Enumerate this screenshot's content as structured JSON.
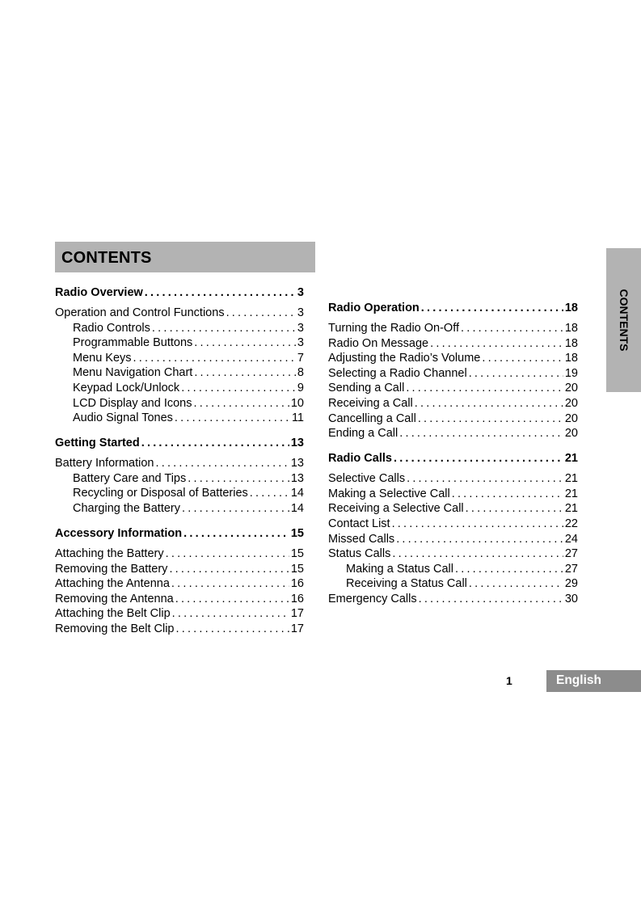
{
  "title": "CONTENTS",
  "side_tab": "CONTENTS",
  "footer": {
    "page_number": "1",
    "language": "English"
  },
  "colors": {
    "header_bar": "#b3b3b3",
    "side_tab": "#b3b3b3",
    "language_box": "#8c8c8c"
  },
  "left_column": [
    {
      "heading": {
        "label": "Radio Overview",
        "page": "3"
      },
      "items": [
        {
          "label": "Operation and Control Functions",
          "page": "3",
          "indent": 0
        },
        {
          "label": "Radio Controls",
          "page": "3",
          "indent": 1
        },
        {
          "label": "Programmable Buttons",
          "page": "3",
          "indent": 1
        },
        {
          "label": "Menu Keys",
          "page": "7",
          "indent": 1
        },
        {
          "label": "Menu Navigation Chart",
          "page": "8",
          "indent": 1
        },
        {
          "label": "Keypad Lock/Unlock",
          "page": "9",
          "indent": 1
        },
        {
          "label": "LCD Display and Icons",
          "page": "10",
          "indent": 1
        },
        {
          "label": "Audio Signal Tones",
          "page": "11",
          "indent": 1
        }
      ]
    },
    {
      "heading": {
        "label": "Getting Started",
        "page": "13"
      },
      "items": [
        {
          "label": "Battery Information",
          "page": "13",
          "indent": 0
        },
        {
          "label": "Battery Care and Tips",
          "page": "13",
          "indent": 1
        },
        {
          "label": "Recycling or Disposal of Batteries",
          "page": "14",
          "indent": 1
        },
        {
          "label": "Charging the Battery",
          "page": "14",
          "indent": 1
        }
      ]
    },
    {
      "heading": {
        "label": "Accessory Information",
        "page": "15"
      },
      "items": [
        {
          "label": "Attaching the Battery",
          "page": "15",
          "indent": 0
        },
        {
          "label": "Removing the Battery",
          "page": "15",
          "indent": 0
        },
        {
          "label": "Attaching the Antenna",
          "page": "16",
          "indent": 0
        },
        {
          "label": "Removing the  Antenna",
          "page": "16",
          "indent": 0
        },
        {
          "label": "Attaching the Belt Clip",
          "page": "17",
          "indent": 0
        },
        {
          "label": "Removing the Belt Clip",
          "page": "17",
          "indent": 0
        }
      ]
    }
  ],
  "right_column": [
    {
      "heading": {
        "label": "Radio Operation",
        "page": "18"
      },
      "items": [
        {
          "label": "Turning the Radio On-Off",
          "page": "18",
          "indent": 0
        },
        {
          "label": "Radio On Message",
          "page": "18",
          "indent": 0
        },
        {
          "label": "Adjusting the Radio’s Volume",
          "page": "18",
          "indent": 0
        },
        {
          "label": "Selecting a Radio Channel",
          "page": "19",
          "indent": 0
        },
        {
          "label": "Sending a Call",
          "page": "20",
          "indent": 0
        },
        {
          "label": "Receiving a Call",
          "page": "20",
          "indent": 0
        },
        {
          "label": "Cancelling a Call",
          "page": "20",
          "indent": 0
        },
        {
          "label": "Ending a Call",
          "page": "20",
          "indent": 0
        }
      ]
    },
    {
      "heading": {
        "label": "Radio Calls",
        "page": "21"
      },
      "items": [
        {
          "label": "Selective Calls",
          "page": "21",
          "indent": 0
        },
        {
          "label": "Making a Selective Call",
          "page": "21",
          "indent": 0
        },
        {
          "label": "Receiving a Selective Call",
          "page": "21",
          "indent": 0
        },
        {
          "label": "Contact List",
          "page": "22",
          "indent": 0
        },
        {
          "label": "Missed Calls",
          "page": "24",
          "indent": 0
        },
        {
          "label": "Status Calls",
          "page": "27",
          "indent": 0
        },
        {
          "label": "Making a Status Call",
          "page": "27",
          "indent": 1
        },
        {
          "label": "Receiving a Status Call",
          "page": "29",
          "indent": 1
        },
        {
          "label": "Emergency Calls",
          "page": "30",
          "indent": 0
        }
      ]
    }
  ]
}
